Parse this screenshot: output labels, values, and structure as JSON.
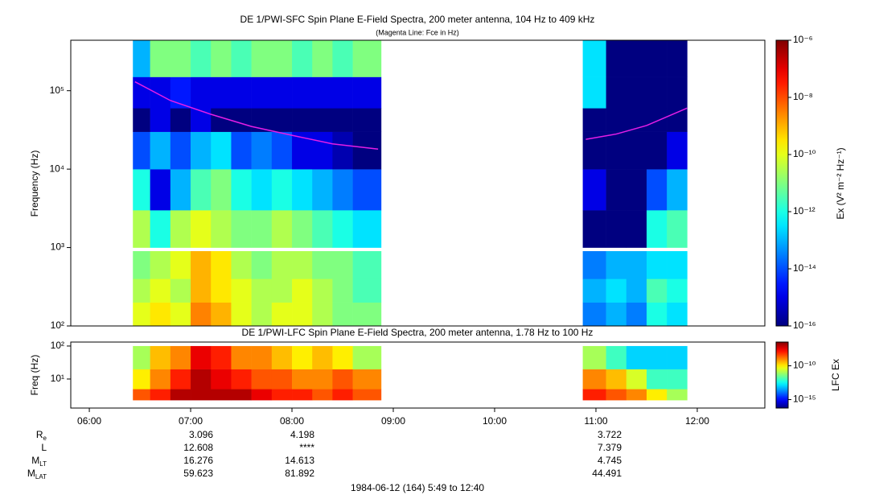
{
  "chart_data": [
    {
      "type": "heatmap",
      "title": "DE 1/PWI-SFC  Spin Plane E-Field Spectra, 200 meter antenna, 104 Hz to 409 kHz",
      "subtitle": "(Magenta Line: Fce in Hz)",
      "y_label": "Frequency (Hz)",
      "colorbar_label": "Ex (V² m⁻² Hz⁻¹)",
      "colormap": "jet",
      "y_scale": "log",
      "color_scale": "log",
      "xlim": [
        5.817,
        12.667
      ],
      "ylim": [
        100,
        440000
      ],
      "yticks": [
        {
          "value": 100,
          "label": "10²"
        },
        {
          "value": 1000,
          "label": "10³"
        },
        {
          "value": 10000,
          "label": "10⁴"
        },
        {
          "value": 100000,
          "label": "10⁵"
        }
      ],
      "clim": [
        1e-16,
        1e-06
      ],
      "cticks": [
        {
          "value": 1e-16,
          "label": "10⁻¹⁶"
        },
        {
          "value": 1e-14,
          "label": "10⁻¹⁴"
        },
        {
          "value": 1e-12,
          "label": "10⁻¹²"
        },
        {
          "value": 1e-10,
          "label": "10⁻¹⁰"
        },
        {
          "value": 1e-08,
          "label": "10⁻⁸"
        },
        {
          "value": 1e-06,
          "label": "10⁻⁶"
        }
      ],
      "x_bins": [
        6.43,
        6.6,
        6.8,
        7.0,
        7.2,
        7.4,
        7.6,
        7.8,
        8.0,
        8.2,
        8.4,
        8.6,
        8.88,
        10.87,
        11.1,
        11.3,
        11.5,
        11.7,
        11.9
      ],
      "y_bins": [
        100,
        200,
        400,
        900,
        1000,
        3000,
        10000,
        30000,
        60000,
        150000,
        440000
      ],
      "values": [
        [
          1e-10,
          3e-10,
          1e-10,
          3e-09,
          1e-09,
          1e-10,
          3e-11,
          1e-10,
          1e-10,
          3e-11,
          1e-11,
          1e-11,
          null,
          3e-14,
          1e-13,
          3e-14,
          1e-12,
          3e-13
        ],
        [
          3e-11,
          1e-10,
          3e-11,
          1e-09,
          3e-10,
          1e-10,
          3e-11,
          3e-11,
          1e-10,
          3e-11,
          1e-11,
          3e-12,
          null,
          1e-13,
          3e-13,
          1e-13,
          3e-12,
          1e-12
        ],
        [
          1e-11,
          3e-11,
          1e-10,
          1e-09,
          3e-10,
          3e-11,
          1e-11,
          3e-11,
          3e-11,
          1e-11,
          1e-11,
          3e-12,
          null,
          3e-14,
          1e-13,
          1e-13,
          3e-13,
          3e-13
        ],
        [
          null,
          null,
          null,
          null,
          null,
          null,
          null,
          null,
          null,
          null,
          null,
          null,
          null,
          null,
          null,
          null,
          null,
          null
        ],
        [
          3e-11,
          1e-12,
          3e-11,
          1e-10,
          3e-11,
          1e-11,
          1e-11,
          3e-11,
          1e-11,
          3e-12,
          1e-12,
          3e-13,
          null,
          1e-16,
          1e-16,
          1e-16,
          1e-12,
          3e-12
        ],
        [
          1e-12,
          1e-15,
          1e-13,
          3e-12,
          1e-11,
          1e-12,
          3e-13,
          1e-12,
          3e-13,
          1e-13,
          3e-14,
          1e-14,
          null,
          1e-15,
          1e-16,
          1e-16,
          1e-14,
          1e-13
        ],
        [
          1e-14,
          1e-13,
          1e-14,
          1e-13,
          3e-13,
          1e-14,
          3e-14,
          1e-14,
          1e-15,
          1e-15,
          3e-16,
          1e-16,
          null,
          1e-16,
          1e-16,
          1e-16,
          1e-16,
          1e-15
        ],
        [
          1e-16,
          1e-15,
          1e-16,
          1e-15,
          1e-16,
          1e-16,
          1e-16,
          1e-16,
          1e-16,
          1e-16,
          1e-16,
          1e-16,
          null,
          1e-16,
          1e-16,
          1e-16,
          1e-16,
          1e-16
        ],
        [
          1e-15,
          1e-15,
          3e-15,
          1e-15,
          1e-15,
          1e-15,
          1e-15,
          1e-15,
          1e-15,
          1e-15,
          1e-15,
          1e-15,
          null,
          3e-13,
          1e-16,
          1e-16,
          1e-16,
          1e-16
        ],
        [
          1e-13,
          1e-11,
          1e-11,
          3e-12,
          1e-11,
          3e-12,
          1e-11,
          1e-11,
          3e-12,
          1e-11,
          3e-12,
          1e-11,
          null,
          3e-13,
          1e-16,
          1e-16,
          1e-16,
          1e-16
        ]
      ],
      "line": {
        "color": "#e61ee6",
        "x": [
          6.45,
          6.8,
          7.2,
          7.6,
          8.0,
          8.4,
          8.85,
          9.8,
          10.9,
          11.2,
          11.5,
          11.9
        ],
        "values": [
          130000,
          75000,
          50000,
          35000,
          27000,
          21000,
          18000,
          null,
          24000,
          28000,
          36000,
          60000
        ]
      }
    },
    {
      "type": "heatmap",
      "title": "DE 1/PWI-LFC  Spin Plane E-Field Spectra, 200 meter antenna, 1.78 Hz to 100 Hz",
      "y_label": "Freq (Hz)",
      "colorbar_label": "LFC Ex",
      "colormap": "jet",
      "y_scale": "log",
      "color_scale": "log",
      "xlim": [
        5.817,
        12.667
      ],
      "xticks": [
        {
          "value": 6,
          "label": "06:00"
        },
        {
          "value": 7,
          "label": "07:00"
        },
        {
          "value": 8,
          "label": "08:00"
        },
        {
          "value": 9,
          "label": "09:00"
        },
        {
          "value": 10,
          "label": "10:00"
        },
        {
          "value": 11,
          "label": "11:00"
        },
        {
          "value": 12,
          "label": "12:00"
        }
      ],
      "ylim": [
        1.32,
        132
      ],
      "yticks": [
        {
          "value": 10,
          "label": "10¹"
        },
        {
          "value": 100,
          "label": "10²"
        }
      ],
      "clim": [
        5.6e-17,
        3.2e-07
      ],
      "cticks": [
        {
          "value": 1e-15,
          "label": "10⁻¹⁵"
        },
        {
          "value": 1e-10,
          "label": "10⁻¹⁰"
        }
      ],
      "x_bins": [
        6.43,
        6.6,
        6.8,
        7.0,
        7.2,
        7.4,
        7.6,
        7.8,
        8.0,
        8.2,
        8.4,
        8.6,
        8.88,
        10.87,
        11.1,
        11.3,
        11.5,
        11.7,
        11.9
      ],
      "y_bins": [
        2.3,
        5,
        20,
        100
      ],
      "values": [
        [
          3e-09,
          1e-08,
          1e-07,
          1e-07,
          1e-07,
          1e-07,
          3e-08,
          1e-08,
          1e-08,
          3e-09,
          1e-08,
          3e-09,
          null,
          1e-08,
          3e-09,
          1e-09,
          1e-10,
          1e-11
        ],
        [
          1e-10,
          1e-09,
          1e-08,
          1e-07,
          3e-08,
          1e-08,
          3e-09,
          3e-09,
          1e-09,
          1e-09,
          3e-09,
          1e-09,
          null,
          1e-09,
          3e-10,
          3e-11,
          1e-12,
          1e-12
        ],
        [
          1e-11,
          3e-10,
          1e-09,
          3e-08,
          1e-08,
          1e-09,
          1e-09,
          3e-10,
          1e-10,
          3e-10,
          1e-10,
          1e-11,
          null,
          1e-11,
          1e-12,
          1e-13,
          1e-13,
          1e-13
        ]
      ]
    }
  ],
  "ephemeris": {
    "rows": [
      {
        "label": "R",
        "sub": "e",
        "values": [
          "3.096",
          "4.198",
          "3.722"
        ]
      },
      {
        "label": "L",
        "values": [
          "12.608",
          "****",
          "7.379"
        ]
      },
      {
        "label": "M",
        "sub": "LT",
        "values": [
          "16.276",
          "14.613",
          "4.745"
        ]
      },
      {
        "label": "M",
        "sub": "LAT",
        "values": [
          "59.623",
          "81.892",
          "44.491"
        ]
      }
    ]
  },
  "footer": "1984-06-12 (164) 5:49 to 12:40"
}
